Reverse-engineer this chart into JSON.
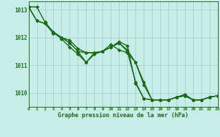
{
  "background_color": "#c8ece8",
  "plot_bg_color": "#c8ece8",
  "grid_color": "#a0d0cc",
  "line_color": "#1a6b1a",
  "xlabel": "Graphe pression niveau de la mer (hPa)",
  "xlim": [
    0,
    23
  ],
  "ylim": [
    1009.5,
    1013.3
  ],
  "yticks": [
    1010,
    1011,
    1012,
    1013
  ],
  "xticks": [
    0,
    1,
    2,
    3,
    4,
    5,
    6,
    7,
    8,
    9,
    10,
    11,
    12,
    13,
    14,
    15,
    16,
    17,
    18,
    19,
    20,
    21,
    22,
    23
  ],
  "series": [
    [
      1013.1,
      1013.1,
      1012.55,
      1012.2,
      1012.0,
      1011.9,
      1011.6,
      1011.45,
      1011.45,
      1011.5,
      1011.65,
      1011.8,
      1011.5,
      1010.4,
      1009.8,
      1009.75,
      1009.75,
      1009.75,
      1009.85,
      1009.9,
      1009.75,
      1009.75,
      1009.85,
      1009.9
    ],
    [
      1013.1,
      1012.6,
      1012.5,
      1012.15,
      1012.0,
      1011.8,
      1011.5,
      1011.1,
      1011.45,
      1011.5,
      1011.65,
      1011.8,
      1011.55,
      1011.1,
      1010.4,
      1009.75,
      1009.75,
      1009.75,
      1009.85,
      1009.9,
      1009.75,
      1009.75,
      1009.85,
      1009.9
    ],
    [
      1013.1,
      1012.6,
      1012.5,
      1012.2,
      1011.95,
      1011.65,
      1011.4,
      1011.1,
      1011.4,
      1011.5,
      1011.75,
      1011.55,
      1011.45,
      1011.1,
      1010.3,
      1009.75,
      1009.75,
      1009.75,
      1009.85,
      1009.95,
      1009.75,
      1009.75,
      1009.85,
      1009.9
    ],
    [
      1013.1,
      1012.6,
      1012.5,
      1012.2,
      1012.0,
      1011.8,
      1011.5,
      1011.45,
      1011.45,
      1011.5,
      1011.65,
      1011.85,
      1011.7,
      1010.35,
      1009.8,
      1009.75,
      1009.75,
      1009.75,
      1009.85,
      1009.9,
      1009.75,
      1009.75,
      1009.85,
      1009.9
    ]
  ],
  "series_with_markers": [
    [
      1013.1,
      1012.6,
      1012.5,
      1012.2,
      1011.95,
      1011.65,
      1011.4,
      1011.1,
      1011.4,
      1011.5,
      1011.75,
      1011.55,
      1011.45,
      1011.1,
      1010.3,
      1009.75,
      1009.75,
      1009.75,
      1009.85,
      1009.95,
      1009.75,
      1009.75,
      1009.85,
      1009.9
    ]
  ]
}
